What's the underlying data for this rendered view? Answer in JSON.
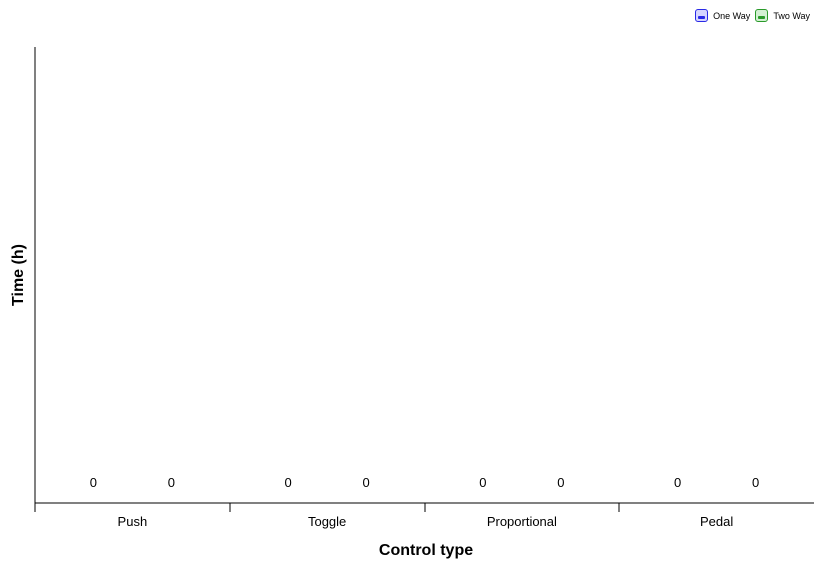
{
  "chart_data": {
    "type": "bar",
    "title": "",
    "xlabel": "Control type",
    "ylabel": "Time (h)",
    "categories": [
      "Push",
      "Toggle",
      "Proportional",
      "Pedal"
    ],
    "series": [
      {
        "name": "One Way",
        "values": [
          0,
          0,
          0,
          0
        ],
        "color": "#2a2ae6"
      },
      {
        "name": "Two Way",
        "values": [
          0,
          0,
          0,
          0
        ],
        "color": "#2a9a2a"
      }
    ],
    "grid": false,
    "legend_position": "top-right"
  }
}
